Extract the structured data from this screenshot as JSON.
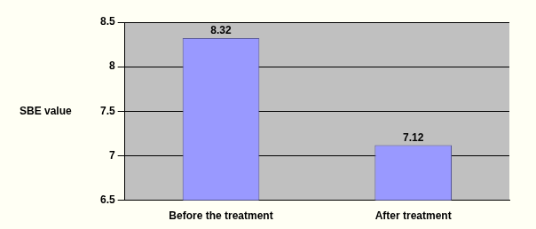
{
  "chart_data": {
    "type": "bar",
    "ylabel": "SBE value",
    "categories": [
      "Before the treatment",
      "After treatment"
    ],
    "values": [
      8.32,
      7.12
    ],
    "color": "#9999ff",
    "ylim": [
      6.5,
      8.5
    ],
    "yticks": [
      6.5,
      7,
      7.5,
      8,
      8.5
    ],
    "grid": true,
    "data_labels": true
  }
}
